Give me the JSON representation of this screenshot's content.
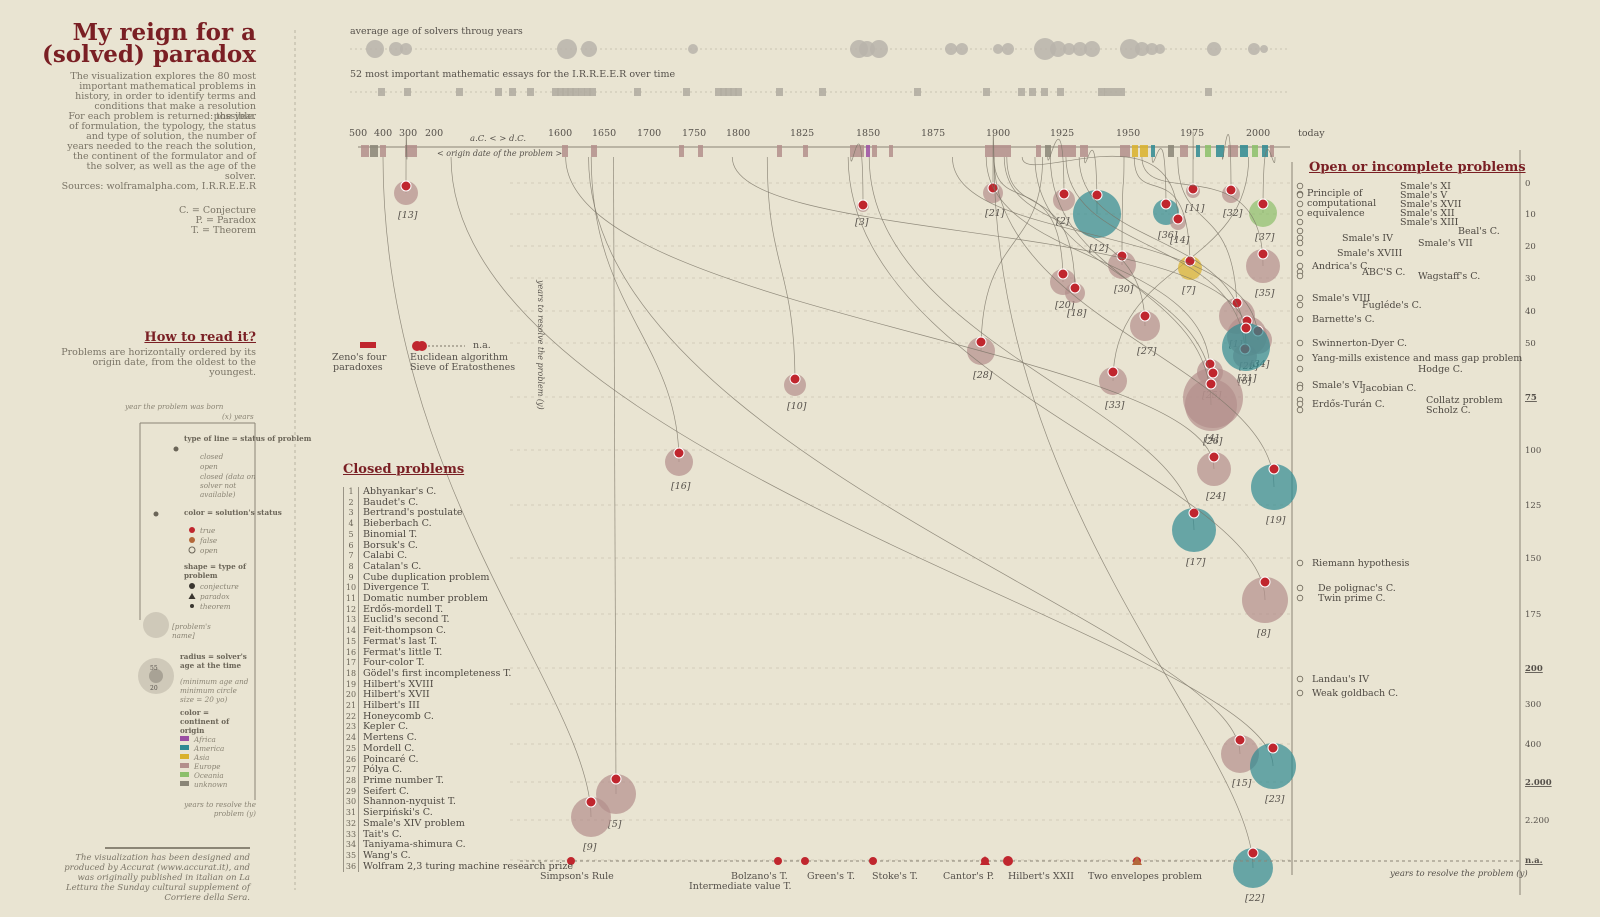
{
  "title": "My reign for a (solved) paradox",
  "intro": "The visualization explores the 80 most important mathematical problems in history, in order to identify terms and conditions that make a resolution possible.",
  "returned": "For each problem is returned: the year of formulation, the typology, the status and type of solution, the number of years needed to the reach the solution, the continent of the formulator and of the solver, as well as the age of the solver.",
  "sources": "Sources: wolframalpha.com, I.R.R.E.E.R",
  "abbrev": [
    "C. = Conjecture",
    "P. = Paradox",
    "T. = Theorem"
  ],
  "howto_title": "How to read it?",
  "howto_text": "Problems are horizontally ordered by its origin date, from the oldest to the youngest.",
  "legend": {
    "year_born": "year the problem was born",
    "x_years": "(x)   years",
    "line_title": "type of line = status of problem",
    "line_items": [
      "closed",
      "open",
      "closed (data on solver not available)"
    ],
    "color_title": "color = solution's status",
    "color_items": [
      "true",
      "false",
      "open"
    ],
    "shape_title": "shape = type of problem",
    "shape_items": [
      "conjecture",
      "paradox",
      "theorem"
    ],
    "name_label": "[problem's name]",
    "radius_title": "radius = solver's age at the time",
    "radius_note": "(minimum age and minimum circle size = 20 yo)",
    "radius_values": [
      "55",
      "20"
    ],
    "continent_title": "color = continent of origin",
    "continents": [
      "Africa",
      "America",
      "Asia",
      "Europe",
      "Oceania",
      "unknown"
    ],
    "years_resolve": "years to resolve the problem (y)"
  },
  "credit": "The visualization has been designed and produced by Accurat (www.accurat.it), and was originally published in italian on La Lettura the Sunday cultural supplement of Corriere della Sera.",
  "colors": {
    "true": "#c0262e",
    "europe": "#b38f8c",
    "america": "#2f8a92",
    "asia": "#d9b12b",
    "oceania": "#8bbf6a",
    "africa": "#9b4fa3",
    "unknown": "#8a8577",
    "bg": "#e9e4d2",
    "title": "#7a1f24"
  },
  "top_labels": {
    "age_strip": "average age of solvers throug years",
    "essay_strip": "52 most important mathematic essays for the I.R.R.E.E.R over time"
  },
  "axis": {
    "top_ticks": [
      "500",
      "400",
      "300",
      "200",
      "1600",
      "1650",
      "1700",
      "1750",
      "1800",
      "1825",
      "1850",
      "1875",
      "1900",
      "1925",
      "1950",
      "1975",
      "2000",
      "today"
    ],
    "bc_ad": "a.C. < > d.C.",
    "origin_label": "< origin date of the problem >",
    "years_vertical": "years to resolve the problem (y)",
    "y_ticks": [
      "0",
      "10",
      "20",
      "30",
      "40",
      "50",
      "75",
      "100",
      "125",
      "150",
      "175",
      "200",
      "300",
      "400",
      "2.000",
      "2.200",
      "n.a."
    ],
    "bottom_axis": "years to resolve the problem (y)"
  },
  "chart_data": {
    "type": "scatter",
    "title": "My reign for a (solved) paradox",
    "xlabel": "origin date of the problem",
    "ylabel": "years to resolve the problem (y)",
    "problems": [
      {
        "id": 13,
        "name": "Euclid's second T.",
        "origin": -300,
        "years": 5,
        "continent": "Europe"
      },
      {
        "id": 16,
        "name": "Fermat's little T.",
        "origin": 1640,
        "years": 105
      },
      {
        "id": 5,
        "name": "Binomial T.",
        "origin": 1665,
        "years": 2300
      },
      {
        "id": 9,
        "name": "Cube duplication problem",
        "origin": -400,
        "years": 2240
      },
      {
        "id": 10,
        "name": "Divergence T.",
        "origin": 1813,
        "years": 75
      },
      {
        "id": 3,
        "name": "Bertrand's postulate",
        "origin": 1845,
        "years": 7
      },
      {
        "id": 28,
        "name": "Pólya C.",
        "origin": 1919,
        "years": 50
      },
      {
        "id": 21,
        "name": "Hilbert's XVII",
        "origin": 1900,
        "years": 5
      },
      {
        "id": 2,
        "name": "Baudet's C.",
        "origin": 1921,
        "years": 7
      },
      {
        "id": 12,
        "name": "Erdős-mordell T.",
        "origin": 1935,
        "years": 10
      },
      {
        "id": 20,
        "name": "Hilbert's XVIII",
        "origin": 1900,
        "years": 35
      },
      {
        "id": 18,
        "name": "Gödel's first incompleteness T.",
        "origin": 1905,
        "years": 38
      },
      {
        "id": 30,
        "name": "Seifert C.",
        "origin": 1950,
        "years": 30
      },
      {
        "id": 27,
        "name": "Poincaré C.",
        "origin": 1904,
        "years": 48
      },
      {
        "id": 33,
        "name": "Smale's XIV problem",
        "origin": 1998,
        "years": 72
      },
      {
        "id": 36,
        "name": "Wang's C.",
        "origin": 1961,
        "years": 10
      },
      {
        "id": 14,
        "name": "Feit-thompson C.",
        "origin": 1911,
        "years": 10
      },
      {
        "id": 7,
        "name": "Calabi C.",
        "origin": 1954,
        "years": 30
      },
      {
        "id": 11,
        "name": "Domatic number problem",
        "origin": 1977,
        "years": 2
      },
      {
        "id": 32,
        "name": "Sierpiński's C.",
        "origin": 1988,
        "years": 3
      },
      {
        "id": 37,
        "name": "Wolfram 2,3 turing machine research prize",
        "origin": 2007,
        "years": 10
      },
      {
        "id": 35,
        "name": "Taniyama-shimura C.",
        "origin": 1957,
        "years": 30
      },
      {
        "id": 1,
        "name": "Abhyankar's C.",
        "origin": 1971,
        "years": 40
      },
      {
        "id": 29,
        "name": "Prime number T.",
        "origin": 1798,
        "years": 45
      },
      {
        "id": 34,
        "name": "Tait's C.",
        "origin": 1884,
        "years": 48
      },
      {
        "id": 31,
        "name": "Shannon-nyquist T.",
        "origin": 1928,
        "years": 51
      },
      {
        "id": 6,
        "name": "Borsuk's C.",
        "origin": 1933,
        "years": 60
      },
      {
        "id": 25,
        "name": "Mertens C.",
        "origin": 1897,
        "years": 88
      },
      {
        "id": 4,
        "name": "Bieberbach C.",
        "origin": 1916,
        "years": 68
      },
      {
        "id": 26,
        "name": "Mordell C.",
        "origin": 1922,
        "years": 61
      },
      {
        "id": 24,
        "name": "Kepler C.",
        "origin": 1611,
        "years": 387
      },
      {
        "id": 19,
        "name": "Hilbert's III",
        "origin": 1900,
        "years": 110
      },
      {
        "id": 17,
        "name": "Four-color T.",
        "origin": 1852,
        "years": 124
      },
      {
        "id": 8,
        "name": "Catalan's C.",
        "origin": 1844,
        "years": 158
      },
      {
        "id": 15,
        "name": "Fermat's last T.",
        "origin": 1637,
        "years": 358
      },
      {
        "id": 23,
        "name": "Honeycomb C.",
        "origin": -36,
        "years": 2035
      },
      {
        "id": 22,
        "name": "Hilbert's XXII",
        "origin": 1900,
        "years": null
      }
    ],
    "open_problems": [
      "Principle of computational equivalence",
      "Smale's XI",
      "Smale's V",
      "Smale's XVII",
      "Smale's XII",
      "Smale's XIII",
      "Beal's C.",
      "Smale's IV",
      "Smale's VII",
      "Smale's XVIII",
      "Andrica's C.",
      "ABC'S C.",
      "Wagstaff's C.",
      "Smale's VIII",
      "Fugléde's C.",
      "Barnette's C.",
      "Swinnerton-Dyer C.",
      "Yang-mills existence and mass gap problem",
      "Hodge C.",
      "Smale's VI",
      "Jacobian C.",
      "Collatz problem",
      "Erdős-Turán C.",
      "Scholz C.",
      "Riemann hypothesis",
      "De polignac's C.",
      "Twin prime C.",
      "Landau's IV",
      "Weak goldbach C."
    ],
    "closed_problems": [
      "Abhyankar's C.",
      "Baudet's C.",
      "Bertrand's postulate",
      "Bieberbach C.",
      "Binomial T.",
      "Borsuk's C.",
      "Calabi C.",
      "Catalan's C.",
      "Cube duplication problem",
      "Divergence T.",
      "Domatic number problem",
      "Erdős-mordell T.",
      "Euclid's second T.",
      "Feit-thompson C.",
      "Fermat's last T.",
      "Fermat's little T.",
      "Four-color T.",
      "Gödel's first incompleteness T.",
      "Hilbert's XVIII",
      "Hilbert's XVII",
      "Hilbert's III",
      "Honeycomb C.",
      "Kepler C.",
      "Mertens C.",
      "Mordell C.",
      "Poincaré C.",
      "Pólya C.",
      "Prime number T.",
      "Seifert C.",
      "Shannon-nyquist T.",
      "Sierpiński's C.",
      "Smale's XIV problem",
      "Tait's C.",
      "Taniyama-shimura C.",
      "Wang's C.",
      "Wolfram 2,3 turing machine research prize"
    ],
    "na_problems": [
      "Simpson's Rule",
      "Bolzano's T.",
      "Intermediate value T.",
      "Green's T.",
      "Stoke's T.",
      "Cantor's P.",
      "Hilbert's XXII",
      "Two envelopes problem"
    ],
    "early_problems": [
      "Zeno's four paradoxes",
      "Euclidean algorithm",
      "Sieve of Eratosthenes"
    ],
    "na_label": "n.a."
  }
}
